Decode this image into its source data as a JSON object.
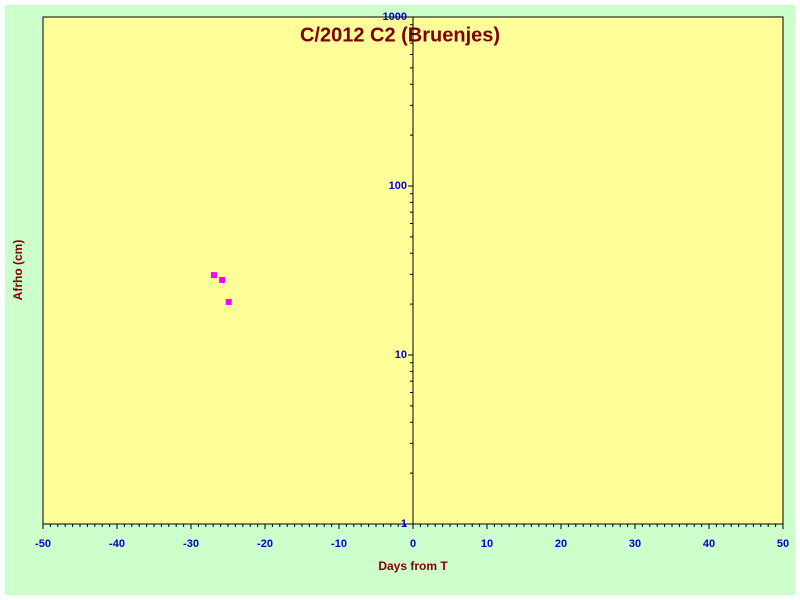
{
  "chart_data": {
    "type": "scatter",
    "title": "C/2012 C2 (Bruenjes)",
    "x_label": "Days from T",
    "y_label": "Afrho (cm)",
    "series": [
      {
        "color": "#ff00ff",
        "x": [
          -26.9,
          -25.8,
          -24.9
        ],
        "values": [
          29.7,
          27.8,
          20.6
        ]
      }
    ],
    "xlim": [
      -50,
      50
    ],
    "xticks": [
      -50,
      -40,
      -30,
      -20,
      -10,
      0,
      10,
      20,
      30,
      40,
      50
    ],
    "ylim": [
      1,
      1000
    ],
    "yticks": [
      1,
      10,
      100,
      1000
    ],
    "ylog": true,
    "background": "#ccffcc",
    "plot_background": "#ffff99"
  }
}
